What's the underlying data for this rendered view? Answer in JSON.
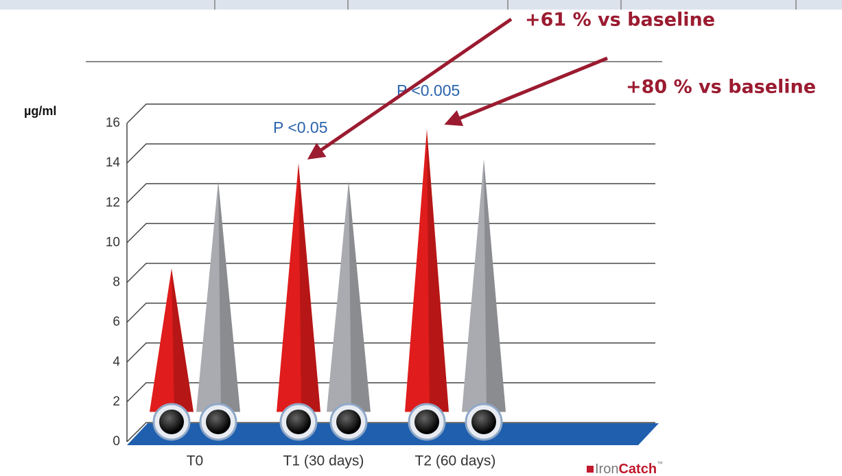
{
  "chart_data": {
    "type": "spike",
    "y_label": "µg/ml",
    "categories": [
      "T0",
      "T1 (30 days)",
      "T2 (60 days)"
    ],
    "series": [
      {
        "color": "#e01c1c",
        "values": [
          8.7,
          14,
          15.7
        ]
      },
      {
        "color": "#a9abb0",
        "values": [
          13.1,
          13.1,
          14.2
        ]
      }
    ],
    "ylim": [
      0,
      16
    ],
    "yticks": [
      0,
      2,
      4,
      6,
      8,
      10,
      12,
      14,
      16
    ],
    "grid": true,
    "annotations": [
      "+61 % vs baseline",
      "+80 % vs baseline"
    ],
    "p_values": [
      "P <0.05",
      "P <0.005"
    ]
  },
  "logo": {
    "part1": "Iron",
    "part2": "Catch",
    "mark": "™"
  }
}
